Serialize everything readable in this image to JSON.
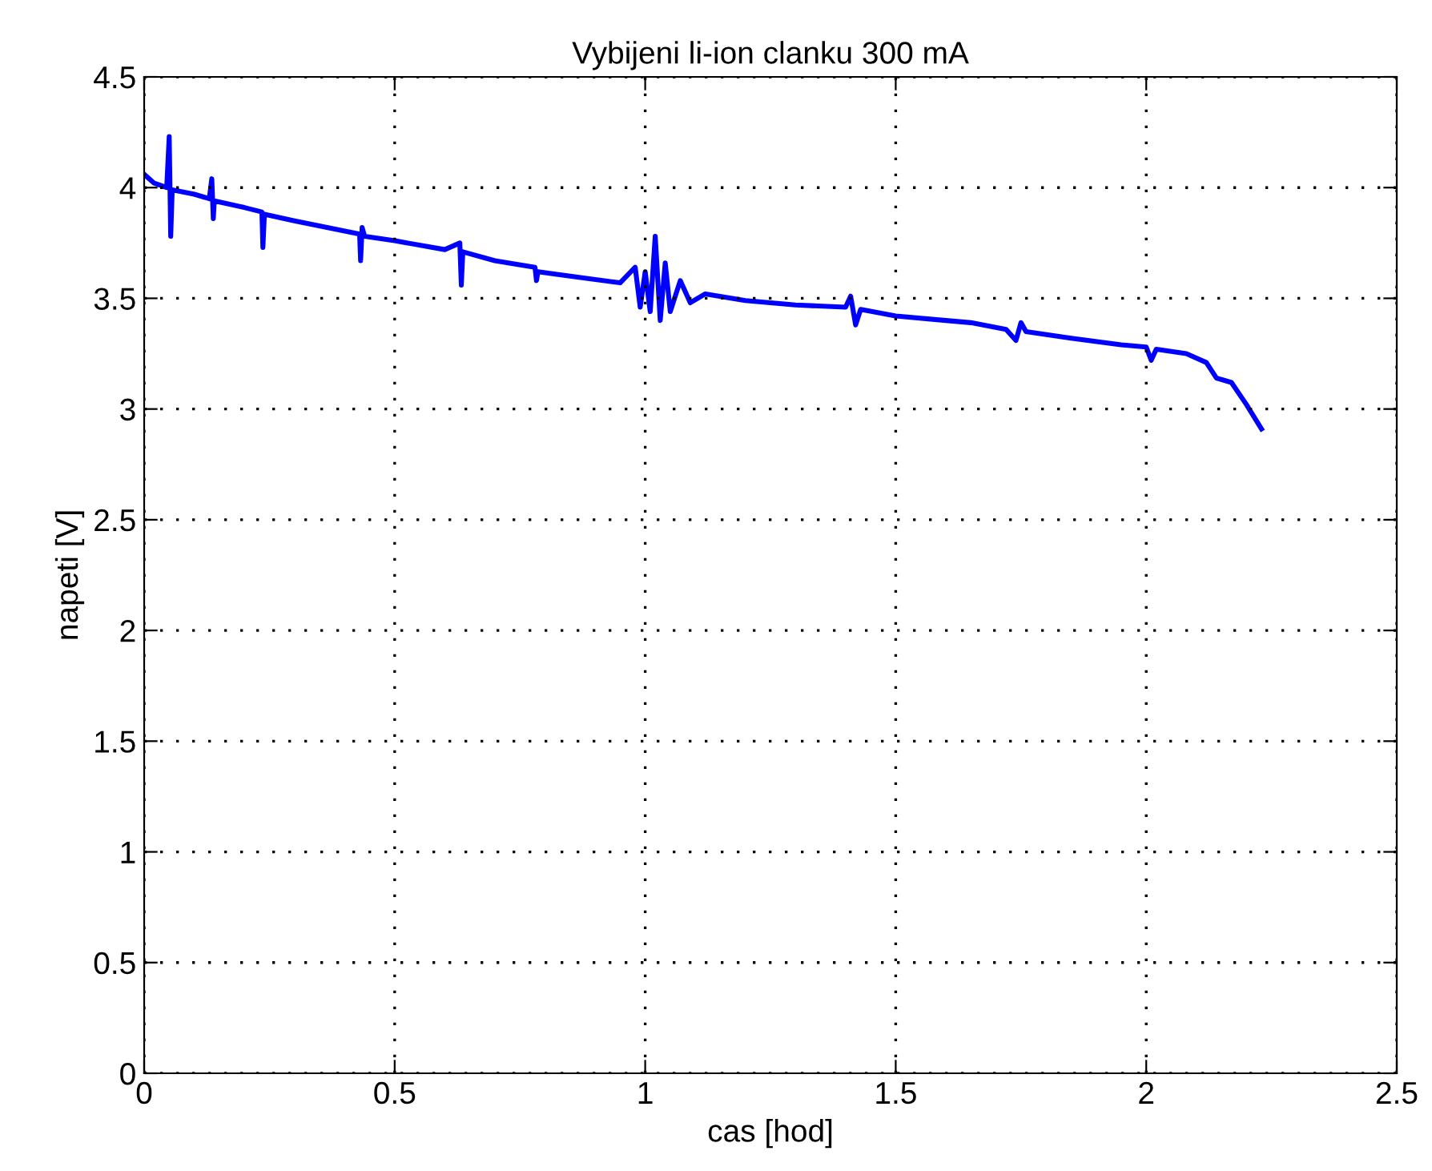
{
  "chart_data": {
    "type": "line",
    "title": "Vybijeni li-ion clanku 300 mA",
    "xlabel": "cas [hod]",
    "ylabel": "napeti [V]",
    "xlim": [
      0,
      2.5
    ],
    "ylim": [
      0,
      4.5
    ],
    "xticks": [
      0,
      0.5,
      1,
      1.5,
      2,
      2.5
    ],
    "yticks": [
      0,
      0.5,
      1,
      1.5,
      2,
      2.5,
      3,
      3.5,
      4,
      4.5
    ],
    "grid": true,
    "line_style": "solid",
    "marker": "none",
    "series": [
      {
        "color": "#0000ff",
        "x": [
          0,
          0.02,
          0.045,
          0.05,
          0.053,
          0.056,
          0.1,
          0.13,
          0.135,
          0.138,
          0.14,
          0.2,
          0.235,
          0.237,
          0.24,
          0.3,
          0.43,
          0.432,
          0.435,
          0.44,
          0.5,
          0.6,
          0.63,
          0.633,
          0.636,
          0.7,
          0.78,
          0.783,
          0.786,
          0.85,
          0.95,
          0.98,
          0.99,
          1.0,
          1.01,
          1.02,
          1.03,
          1.04,
          1.05,
          1.07,
          1.09,
          1.12,
          1.2,
          1.3,
          1.4,
          1.41,
          1.42,
          1.43,
          1.5,
          1.6,
          1.65,
          1.72,
          1.74,
          1.75,
          1.76,
          1.85,
          1.95,
          2.0,
          2.01,
          2.02,
          2.08,
          2.12,
          2.14,
          2.17,
          2.2,
          2.23
        ],
        "values": [
          4.06,
          4.02,
          4.0,
          4.23,
          3.78,
          3.99,
          3.97,
          3.95,
          4.04,
          3.86,
          3.94,
          3.91,
          3.89,
          3.73,
          3.88,
          3.85,
          3.79,
          3.67,
          3.82,
          3.78,
          3.76,
          3.72,
          3.75,
          3.56,
          3.71,
          3.67,
          3.64,
          3.58,
          3.62,
          3.6,
          3.57,
          3.64,
          3.46,
          3.62,
          3.44,
          3.78,
          3.4,
          3.66,
          3.44,
          3.58,
          3.48,
          3.52,
          3.49,
          3.47,
          3.46,
          3.51,
          3.38,
          3.45,
          3.42,
          3.4,
          3.39,
          3.36,
          3.31,
          3.39,
          3.35,
          3.32,
          3.29,
          3.28,
          3.22,
          3.27,
          3.25,
          3.21,
          3.14,
          3.12,
          3.02,
          2.91
        ]
      }
    ]
  }
}
